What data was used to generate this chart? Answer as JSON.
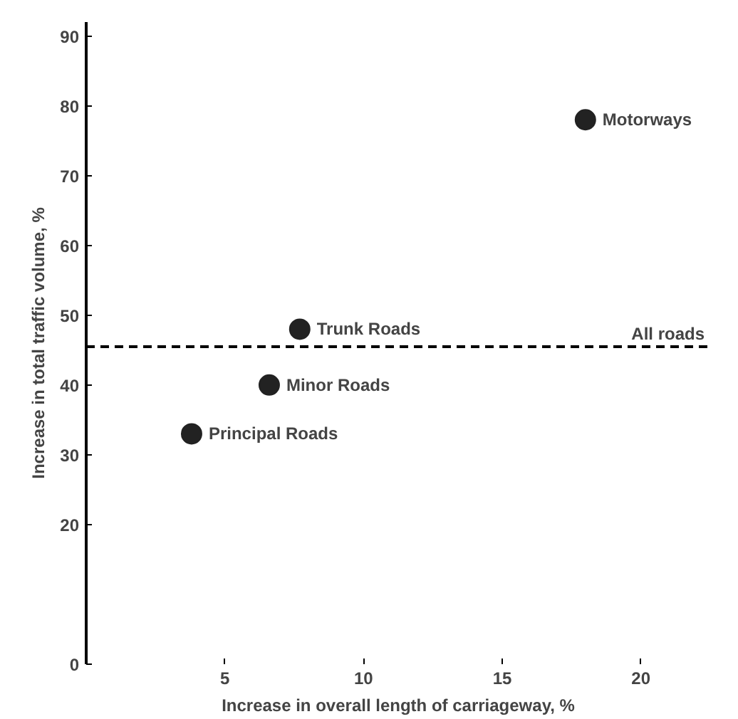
{
  "chart_data": {
    "type": "scatter",
    "xlabel": "Increase in overall length of carriageway, %",
    "ylabel": "Increase in total traffic volume, %",
    "x": [
      18.0,
      7.7,
      6.6,
      3.8
    ],
    "values": [
      78,
      48,
      40,
      33
    ],
    "value_labels": [
      "Motorways",
      "Trunk Roads",
      "Minor Roads",
      "Principal Roads"
    ],
    "color": "#222222",
    "marker": "circle",
    "xlim": [
      0,
      22.5
    ],
    "xticks": [
      5,
      10,
      15,
      20
    ],
    "ylim": [
      0,
      92
    ],
    "yticks": [
      0,
      20,
      30,
      40,
      50,
      60,
      70,
      80,
      90
    ],
    "ref_lines": [
      {
        "axis": "y",
        "value": 45.5,
        "label": "All roads",
        "line_style": "dashed",
        "color": "#000000"
      }
    ],
    "grid": false
  }
}
